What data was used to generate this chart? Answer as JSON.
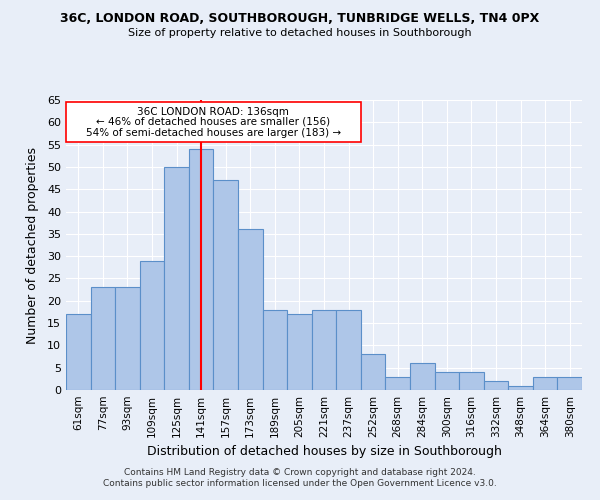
{
  "title1": "36C, LONDON ROAD, SOUTHBOROUGH, TUNBRIDGE WELLS, TN4 0PX",
  "title2": "Size of property relative to detached houses in Southborough",
  "xlabel": "Distribution of detached houses by size in Southborough",
  "ylabel": "Number of detached properties",
  "categories": [
    "61sqm",
    "77sqm",
    "93sqm",
    "109sqm",
    "125sqm",
    "141sqm",
    "157sqm",
    "173sqm",
    "189sqm",
    "205sqm",
    "221sqm",
    "237sqm",
    "252sqm",
    "268sqm",
    "284sqm",
    "300sqm",
    "316sqm",
    "332sqm",
    "348sqm",
    "364sqm",
    "380sqm"
  ],
  "values": [
    17,
    23,
    23,
    29,
    50,
    54,
    47,
    36,
    18,
    17,
    18,
    18,
    8,
    3,
    6,
    4,
    4,
    2,
    1,
    3,
    3
  ],
  "bar_color": "#aec6e8",
  "bar_edge_color": "#5b8fc9",
  "annotation_label": "36C LONDON ROAD: 136sqm",
  "annotation_left": "← 46% of detached houses are smaller (156)",
  "annotation_right": "54% of semi-detached houses are larger (183) →",
  "ylim": [
    0,
    65
  ],
  "yticks": [
    0,
    5,
    10,
    15,
    20,
    25,
    30,
    35,
    40,
    45,
    50,
    55,
    60,
    65
  ],
  "footer1": "Contains HM Land Registry data © Crown copyright and database right 2024.",
  "footer2": "Contains public sector information licensed under the Open Government Licence v3.0.",
  "bg_color": "#e8eef8",
  "grid_color": "#ffffff"
}
